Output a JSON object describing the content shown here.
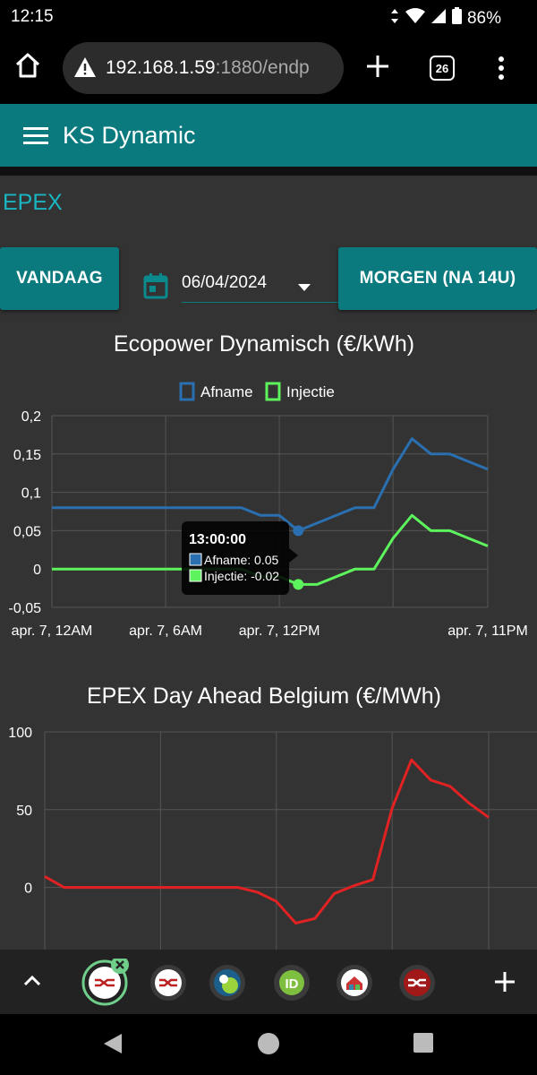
{
  "status": {
    "time": "12:15",
    "battery": "86%"
  },
  "browser": {
    "url_host": "192.168.1.59",
    "url_rest": ":1880/endp",
    "tab_count": "26"
  },
  "app": {
    "title": "KS Dynamic"
  },
  "section": {
    "title": "EPEX"
  },
  "controls": {
    "today_label": "VANDAAG",
    "tomorrow_label": "MORGEN (NA 14U)",
    "date_value": "06/04/2024"
  },
  "colors": {
    "accent": "#0b7a7e",
    "afname": "#2a6fb0",
    "injectie": "#5cf35c",
    "epex": "#e22222"
  },
  "chart_data": [
    {
      "type": "line",
      "title": "Ecopower Dynamisch (€/kWh)",
      "x": [
        0,
        1,
        2,
        3,
        4,
        5,
        6,
        7,
        8,
        9,
        10,
        11,
        12,
        13,
        14,
        15,
        16,
        17,
        18,
        19,
        20,
        21,
        22,
        23
      ],
      "x_tick_labels": [
        "apr. 7, 12AM",
        "apr. 7, 6AM",
        "apr. 7, 12PM",
        "apr. 7, 11PM"
      ],
      "x_tick_positions": [
        0,
        6,
        12,
        23
      ],
      "y_tick_labels": [
        "0,2",
        "0,15",
        "0,1",
        "0,05",
        "0",
        "-0,05"
      ],
      "ylim": [
        -0.05,
        0.2
      ],
      "legend": "top-center",
      "series": [
        {
          "name": "Afname",
          "values": [
            0.08,
            0.08,
            0.08,
            0.08,
            0.08,
            0.08,
            0.08,
            0.08,
            0.08,
            0.08,
            0.08,
            0.07,
            0.07,
            0.05,
            0.06,
            0.07,
            0.08,
            0.08,
            0.13,
            0.17,
            0.15,
            0.15,
            0.14,
            0.13
          ]
        },
        {
          "name": "Injectie",
          "values": [
            0,
            0,
            0,
            0,
            0,
            0,
            0,
            0,
            0,
            0,
            0,
            -0.01,
            -0.01,
            -0.02,
            -0.02,
            -0.01,
            0,
            0,
            0.04,
            0.07,
            0.05,
            0.05,
            0.04,
            0.03
          ]
        }
      ],
      "tooltip": {
        "index": 13,
        "title": "13:00:00",
        "lines": [
          "Afname: 0.05",
          "Injectie: -0.02"
        ]
      }
    },
    {
      "type": "line",
      "title": "EPEX Day Ahead Belgium (€/MWh)",
      "x": [
        0,
        1,
        2,
        3,
        4,
        5,
        6,
        7,
        8,
        9,
        10,
        11,
        12,
        13,
        14,
        15,
        16,
        17,
        18,
        19,
        20,
        21,
        22,
        23
      ],
      "y_tick_labels": [
        "100",
        "50",
        "0"
      ],
      "y_tick_values": [
        100,
        50,
        0
      ],
      "ylim": [
        -40,
        100
      ],
      "series": [
        {
          "name": "",
          "values": [
            7,
            0,
            0,
            0,
            0,
            0,
            0,
            0,
            0,
            0,
            0,
            -3,
            -9,
            -23,
            -20,
            -4,
            1,
            5,
            51,
            82,
            69,
            65,
            54,
            45
          ]
        }
      ]
    }
  ]
}
